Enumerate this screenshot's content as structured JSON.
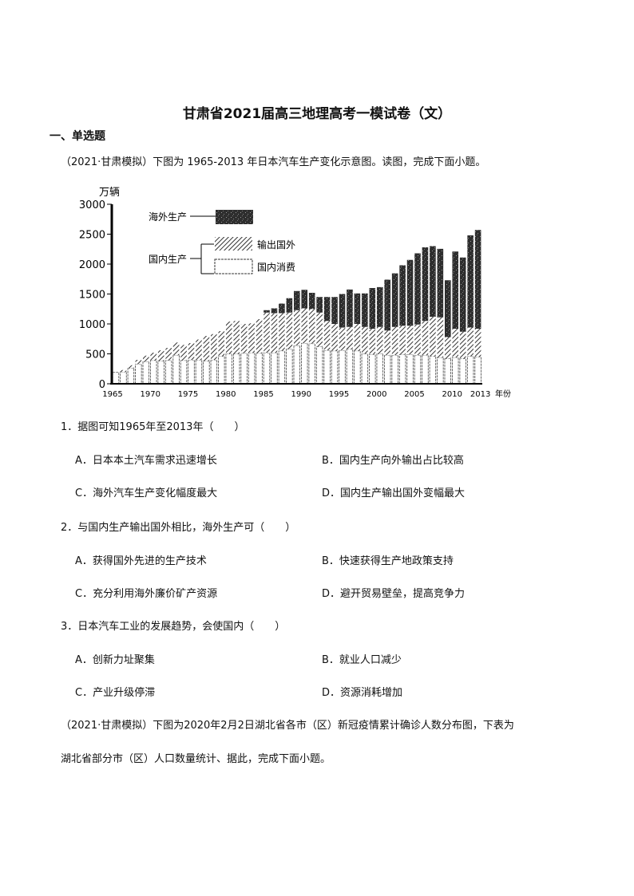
{
  "doc": {
    "title": "甘肃省2021届高三地理高考一模试卷（文）",
    "section": "一、单选题",
    "intro1": "（2021·甘肃模拟）下图为 1965-2013 年日本汽车生产变化示意图。读图，完成下面小题。",
    "questions": [
      {
        "stem": "1．据图可知1965年至2013年（　　）",
        "options": [
          "A．日本本土汽车需求迅速增长",
          "B．国内生产向外输出占比较高",
          "C．海外汽车生产变化幅度最大",
          "D．国内生产输出国外变幅最大"
        ]
      },
      {
        "stem": "2．与国内生产输出国外相比，海外生产可（　　）",
        "options": [
          "A．获得国外先进的生产技术",
          "B．快速获得生产地政策支持",
          "C．充分利用海外廉价矿产资源",
          "D．避开贸易壁垒，提高竞争力"
        ]
      },
      {
        "stem": "3．日本汽车工业的发展趋势，会使国内（　　）",
        "options": [
          "A．创新力址聚集",
          "B．就业人口减少",
          "C．产业升级停滞",
          "D．资源消耗增加"
        ]
      }
    ],
    "intro2_line1": "（2021·甘肃模拟）下图为2020年2月2日湖北省各市（区）新冠疫情累计确诊人数分布图，下表为",
    "intro2_line2": "湖北省部分市（区）人口数量统计、据此，完成下面小题。"
  },
  "chart_data": {
    "type": "bar",
    "stacked": true,
    "ylabel": "万辆",
    "xlabel": "年份",
    "ylim": [
      0,
      3000
    ],
    "yticks": [
      "0",
      "500",
      "1000",
      "1500",
      "2000",
      "2500",
      "3000"
    ],
    "xticks": [
      "1965",
      "1970",
      "1975",
      "1980",
      "1985",
      "1990",
      "1995",
      "2000",
      "2005",
      "2010",
      "2013"
    ],
    "xtick_suffix": "年份",
    "legend": {
      "group_label": "国内生产",
      "overseas": "海外生产",
      "export": "输出国外",
      "domestic": "国内消费",
      "placement": "top-left"
    },
    "x": [
      1965,
      1966,
      1967,
      1968,
      1969,
      1970,
      1971,
      1972,
      1973,
      1974,
      1975,
      1976,
      1977,
      1978,
      1979,
      1980,
      1981,
      1982,
      1983,
      1984,
      1985,
      1986,
      1987,
      1988,
      1989,
      1990,
      1991,
      1992,
      1993,
      1994,
      1995,
      1996,
      1997,
      1998,
      1999,
      2000,
      2001,
      2002,
      2003,
      2004,
      2005,
      2006,
      2007,
      2008,
      2009,
      2010,
      2011,
      2012,
      2013
    ],
    "series": [
      {
        "name": "国内消费",
        "values": [
          190,
          200,
          260,
          330,
          370,
          390,
          380,
          390,
          480,
          390,
          400,
          400,
          380,
          400,
          460,
          500,
          500,
          510,
          520,
          510,
          520,
          520,
          550,
          580,
          640,
          680,
          670,
          620,
          560,
          550,
          560,
          580,
          550,
          500,
          490,
          500,
          480,
          480,
          490,
          490,
          480,
          480,
          460,
          440,
          420,
          440,
          420,
          460,
          450
        ]
      },
      {
        "name": "输出国外",
        "values": [
          0,
          30,
          50,
          70,
          100,
          130,
          180,
          210,
          210,
          260,
          280,
          340,
          420,
          430,
          420,
          540,
          550,
          490,
          490,
          570,
          670,
          660,
          630,
          610,
          590,
          580,
          580,
          570,
          490,
          450,
          380,
          370,
          450,
          450,
          430,
          450,
          410,
          470,
          480,
          480,
          510,
          570,
          660,
          670,
          360,
          480,
          450,
          480,
          470
        ]
      },
      {
        "name": "海外生产",
        "values": [
          0,
          0,
          0,
          0,
          0,
          0,
          0,
          0,
          0,
          0,
          0,
          0,
          0,
          0,
          0,
          0,
          0,
          0,
          0,
          0,
          40,
          80,
          160,
          240,
          320,
          310,
          270,
          260,
          400,
          450,
          560,
          625,
          510,
          560,
          680,
          665,
          850,
          895,
          1010,
          1100,
          1190,
          1230,
          1180,
          1145,
          950,
          1290,
          1240,
          1540,
          1650
        ]
      }
    ],
    "colors": {
      "overseas": "#333333",
      "export": "#555555",
      "domestic": "#ffffff"
    }
  }
}
